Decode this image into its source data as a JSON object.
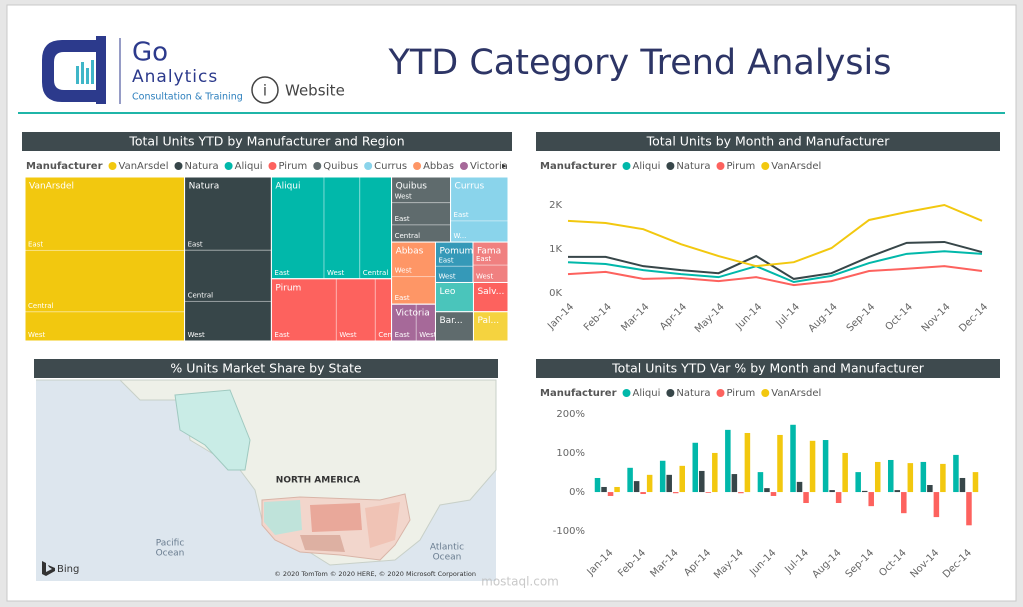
{
  "header": {
    "logo_line1": "Go",
    "logo_line2": "Analytics",
    "logo_tagline": "Consultation & Training",
    "website_link": "Website",
    "title": "YTD Category Trend Analysis"
  },
  "chart_data": [
    {
      "type": "treemap",
      "title": "Total Units YTD by Manufacturer and Region",
      "legend_title": "Manufacturer",
      "items": [
        {
          "name": "VanArsdel",
          "color": "#f2c80f",
          "regions": [
            {
              "name": "East",
              "value": 116
            },
            {
              "name": "Central",
              "value": 97
            },
            {
              "name": "West",
              "value": 46
            }
          ]
        },
        {
          "name": "Natura",
          "color": "#374649",
          "regions": [
            {
              "name": "East",
              "value": 63
            },
            {
              "name": "Central",
              "value": 44
            },
            {
              "name": "West",
              "value": 34
            }
          ]
        },
        {
          "name": "Aliqui",
          "color": "#01b8aa",
          "regions": [
            {
              "name": "East",
              "value": 53
            },
            {
              "name": "West",
              "value": 36
            },
            {
              "name": "Central",
              "value": 32
            }
          ]
        },
        {
          "name": "Pirum",
          "color": "#fd625e",
          "regions": [
            {
              "name": "East",
              "value": 40
            },
            {
              "name": "West",
              "value": 24
            },
            {
              "name": "Central",
              "value": 10
            }
          ]
        },
        {
          "name": "Quibus",
          "color": "#5f6b6d",
          "regions": [
            {
              "name": "West",
              "value": 15
            },
            {
              "name": "East",
              "value": 13
            },
            {
              "name": "Central",
              "value": 10
            }
          ]
        },
        {
          "name": "Currus",
          "color": "#8ad4eb",
          "regions": [
            {
              "name": "East",
              "value": 25
            },
            {
              "name": "W...",
              "value": 12
            }
          ]
        },
        {
          "name": "Abbas",
          "color": "#fe9666",
          "regions": [
            {
              "name": "West",
              "value": 15
            },
            {
              "name": "East",
              "value": 12
            }
          ]
        },
        {
          "name": "Victoria",
          "color": "#a66999",
          "regions": [
            {
              "name": "East",
              "value": 9
            },
            {
              "name": "West",
              "value": 7
            }
          ]
        },
        {
          "name": "Pomum",
          "color": "#3599b8",
          "regions": [
            {
              "name": "East",
              "value": 9
            },
            {
              "name": "West",
              "value": 6
            }
          ]
        },
        {
          "name": "Fama",
          "color": "#f08080",
          "regions": [
            {
              "name": "East",
              "value": 8
            },
            {
              "name": "West",
              "value": 6
            }
          ]
        },
        {
          "name": "Leo",
          "color": "#4ac5bb",
          "value": 11
        },
        {
          "name": "Bar...",
          "color": "#5f6b6d",
          "value": 11
        },
        {
          "name": "Salv...",
          "color": "#fd625e",
          "value": 10
        },
        {
          "name": "Pal...",
          "color": "#f5d33f",
          "value": 10
        }
      ]
    },
    {
      "type": "line",
      "title": "Total Units by Month and Manufacturer",
      "legend_title": "Manufacturer",
      "categories": [
        "Jan-14",
        "Feb-14",
        "Mar-14",
        "Apr-14",
        "May-14",
        "Jun-14",
        "Jul-14",
        "Aug-14",
        "Sep-14",
        "Oct-14",
        "Nov-14",
        "Dec-14"
      ],
      "ylim": [
        0,
        2500
      ],
      "yticks": [
        {
          "value": 0,
          "label": "0K"
        },
        {
          "value": 1000,
          "label": "1K"
        },
        {
          "value": 2000,
          "label": "2K"
        }
      ],
      "grid": false,
      "series": [
        {
          "name": "Aliqui",
          "color": "#01b8aa",
          "values": [
            700,
            660,
            520,
            430,
            360,
            610,
            250,
            390,
            680,
            890,
            950,
            890
          ]
        },
        {
          "name": "Natura",
          "color": "#374649",
          "values": [
            820,
            820,
            610,
            520,
            450,
            840,
            320,
            450,
            820,
            1140,
            1160,
            930
          ]
        },
        {
          "name": "Pirum",
          "color": "#fd625e",
          "values": [
            430,
            480,
            320,
            340,
            270,
            360,
            180,
            270,
            500,
            550,
            610,
            500
          ]
        },
        {
          "name": "VanArsdel",
          "color": "#f2c80f",
          "values": [
            1640,
            1590,
            1450,
            1110,
            840,
            610,
            700,
            1020,
            1660,
            1840,
            2000,
            1640
          ]
        }
      ]
    },
    {
      "type": "map",
      "title": "% Units Market Share by State",
      "labels": [
        "NORTH AMERICA",
        "Pacific",
        "Ocean",
        "Atlantic",
        "Ocean"
      ],
      "brand": "Bing",
      "attribution": "© 2020 TomTom © 2020 HERE, © 2020 Microsoft Corporation"
    },
    {
      "type": "bar",
      "title": "Total Units YTD Var % by Month and Manufacturer",
      "legend_title": "Manufacturer",
      "categories": [
        "Jan-14",
        "Feb-14",
        "Mar-14",
        "Apr-14",
        "May-14",
        "Jun-14",
        "Jul-14",
        "Aug-14",
        "Sep-14",
        "Oct-14",
        "Nov-14",
        "Dec-14"
      ],
      "ylim": [
        -120,
        220
      ],
      "yticks": [
        {
          "value": 200,
          "label": "200%"
        },
        {
          "value": 100,
          "label": "100%"
        },
        {
          "value": 0,
          "label": "0%"
        },
        {
          "value": -100,
          "label": "-100%"
        }
      ],
      "grid": false,
      "series": [
        {
          "name": "Aliqui",
          "color": "#01b8aa",
          "values": [
            36,
            62,
            80,
            126,
            159,
            51,
            172,
            133,
            51,
            82,
            77,
            95
          ]
        },
        {
          "name": "Natura",
          "color": "#374649",
          "values": [
            13,
            28,
            44,
            54,
            46,
            10,
            26,
            5,
            3,
            5,
            18,
            36
          ]
        },
        {
          "name": "Pirum",
          "color": "#fd625e",
          "values": [
            -10,
            -5,
            -3,
            -2,
            -3,
            -10,
            -28,
            -28,
            -36,
            -54,
            -64,
            -85
          ]
        },
        {
          "name": "VanArsdel",
          "color": "#f2c80f",
          "values": [
            13,
            44,
            67,
            100,
            151,
            146,
            131,
            100,
            77,
            74,
            72,
            51
          ]
        }
      ]
    }
  ],
  "watermark": "mostaql.com"
}
